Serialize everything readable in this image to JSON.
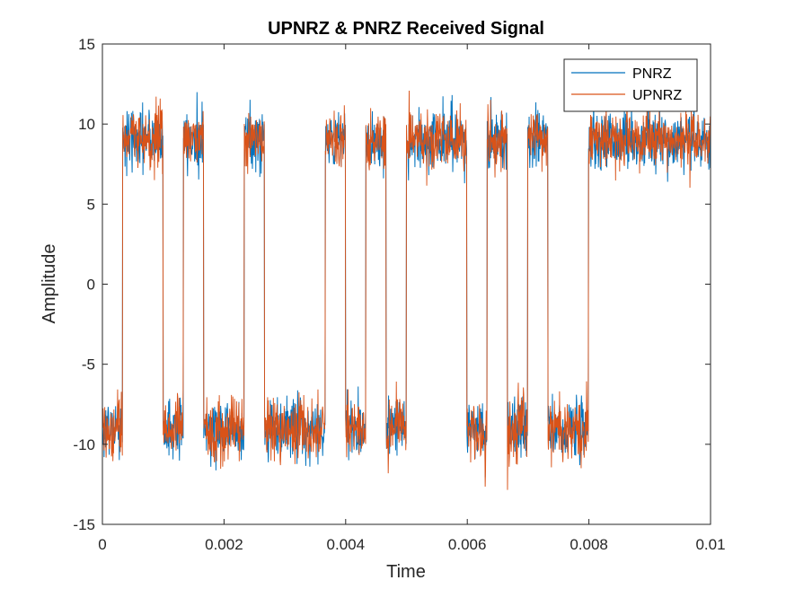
{
  "chart_data": {
    "type": "line",
    "title": "UPNRZ & PNRZ Received Signal",
    "xlabel": "Time",
    "ylabel": "Amplitude",
    "xlim": [
      0,
      0.01
    ],
    "ylim": [
      -15,
      15
    ],
    "x_ticks": [
      "0",
      "0.002",
      "0.004",
      "0.006",
      "0.008",
      "0.01"
    ],
    "y_ticks": [
      "15",
      "10",
      "5",
      "0",
      "-5",
      "-10",
      "-15"
    ],
    "grid": false,
    "legend": {
      "location": "top-right",
      "entries": [
        "PNRZ",
        "UPNRZ"
      ]
    },
    "bit_duration": 0.000333,
    "level_high": 9,
    "level_low": -9,
    "noise_amplitude_approx": 1.5,
    "series": [
      {
        "name": "PNRZ",
        "color": "#0072BD",
        "bits": [
          0,
          1,
          1,
          0,
          1,
          0,
          0,
          1,
          0,
          0,
          0,
          1,
          0,
          1,
          0,
          1,
          1,
          1,
          0,
          1,
          0,
          1,
          0,
          0,
          1,
          1,
          1,
          1,
          1,
          1
        ]
      },
      {
        "name": "UPNRZ",
        "color": "#D95319",
        "bits": [
          0,
          1,
          1,
          0,
          1,
          0,
          0,
          1,
          0,
          0,
          0,
          1,
          0,
          1,
          0,
          1,
          1,
          1,
          0,
          1,
          0,
          1,
          0,
          0,
          1,
          1,
          1,
          1,
          1,
          1
        ]
      }
    ]
  }
}
